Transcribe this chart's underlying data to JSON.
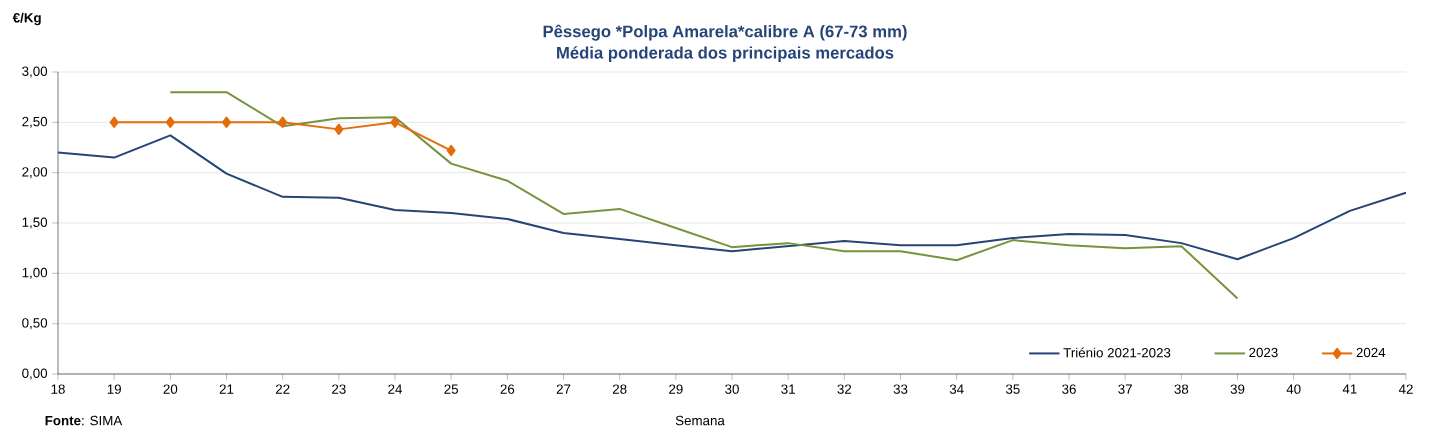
{
  "chart_data": {
    "type": "line",
    "title": "Pêssego *Polpa Amarela*calibre A (67-73 mm)",
    "subtitle": "Média ponderada dos principais mercados",
    "xlabel": "Semana",
    "ylabel": "€/Kg",
    "annotations": [
      "**Fonte**: SIMA"
    ],
    "x": [
      18,
      19,
      20,
      21,
      22,
      23,
      24,
      25,
      26,
      27,
      28,
      29,
      30,
      31,
      32,
      33,
      34,
      35,
      36,
      37,
      38,
      39,
      40,
      41,
      42
    ],
    "series": [
      {
        "name": "Triénio 2021-2023",
        "color": "#264478",
        "marker": "none",
        "values": [
          2.2,
          2.15,
          2.37,
          1.99,
          1.76,
          1.75,
          1.63,
          1.6,
          1.54,
          1.4,
          1.34,
          1.28,
          1.22,
          1.27,
          1.32,
          1.28,
          1.28,
          1.35,
          1.39,
          1.38,
          1.3,
          1.14,
          1.35,
          1.62,
          1.8
        ]
      },
      {
        "name": "2023",
        "color": "#77933c",
        "marker": "none",
        "values": [
          null,
          null,
          2.8,
          2.8,
          2.46,
          2.54,
          2.55,
          2.09,
          1.92,
          1.59,
          1.64,
          1.45,
          1.26,
          1.3,
          1.22,
          1.22,
          1.13,
          1.33,
          1.28,
          1.25,
          1.27,
          0.75,
          null,
          null,
          null
        ]
      },
      {
        "name": "2024",
        "color": "#e46c0a",
        "marker": "diamond",
        "values": [
          null,
          2.5,
          2.5,
          2.5,
          2.5,
          2.43,
          2.5,
          2.22,
          null,
          null,
          null,
          null,
          null,
          null,
          null,
          null,
          null,
          null,
          null,
          null,
          null,
          null,
          null,
          null,
          null
        ]
      }
    ],
    "xlim": [
      18,
      42
    ],
    "xticks": [
      18,
      19,
      20,
      21,
      22,
      23,
      24,
      25,
      26,
      27,
      28,
      29,
      30,
      31,
      32,
      33,
      34,
      35,
      36,
      37,
      38,
      39,
      40,
      41,
      42
    ],
    "ylim": [
      0,
      3
    ],
    "yticks": [
      {
        "value": 0,
        "label": "0,00"
      },
      {
        "value": 0.5,
        "label": "0,50"
      },
      {
        "value": 1,
        "label": "1,00"
      },
      {
        "value": 1.5,
        "label": "1,50"
      },
      {
        "value": 2,
        "label": "2,00"
      },
      {
        "value": 2.5,
        "label": "2,50"
      },
      {
        "value": 3,
        "label": "3,00"
      }
    ],
    "grid": "y",
    "legend": "bottom right",
    "line_style": "solid"
  }
}
